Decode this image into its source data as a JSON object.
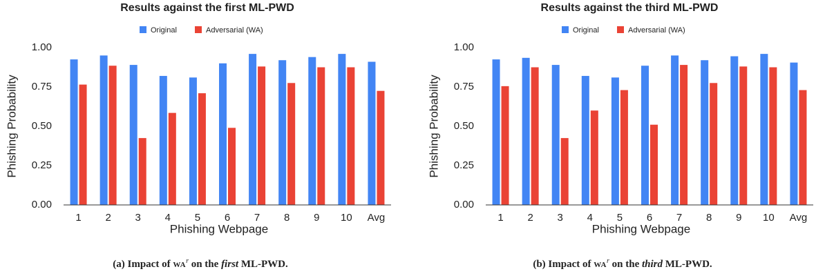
{
  "chart_data": [
    {
      "type": "bar",
      "title": "Results against the first ML-PWD",
      "x_label": "Phishing Webpage",
      "y_label": "Phishing Probability",
      "categories": [
        "1",
        "2",
        "3",
        "4",
        "5",
        "6",
        "7",
        "8",
        "9",
        "10",
        "Avg"
      ],
      "series": [
        {
          "name": "Original",
          "color": "#4285f4",
          "values": [
            0.925,
            0.95,
            0.89,
            0.82,
            0.81,
            0.9,
            0.96,
            0.92,
            0.94,
            0.96,
            0.91
          ]
        },
        {
          "name": "Adversarial (WA)",
          "color": "#ea4335",
          "values": [
            0.765,
            0.885,
            0.425,
            0.585,
            0.71,
            0.49,
            0.88,
            0.775,
            0.875,
            0.875,
            0.725
          ]
        }
      ],
      "ylim": [
        0,
        1
      ],
      "yticks": [
        {
          "value": 0,
          "label": "0.00"
        },
        {
          "value": 0.25,
          "label": "0.25"
        },
        {
          "value": 0.5,
          "label": "0.50"
        },
        {
          "value": 0.75,
          "label": "0.75"
        },
        {
          "value": 1,
          "label": "1.00"
        }
      ],
      "grid": false,
      "caption": [
        "(a) Impact of ",
        "WA",
        "r",
        " on the ",
        "first",
        " ML-PWD."
      ]
    },
    {
      "type": "bar",
      "title": "Results against the third ML-PWD",
      "x_label": "Phishing Webpage",
      "y_label": "Phishing Probability",
      "categories": [
        "1",
        "2",
        "3",
        "4",
        "5",
        "6",
        "7",
        "8",
        "9",
        "10",
        "Avg"
      ],
      "series": [
        {
          "name": "Original",
          "color": "#4285f4",
          "values": [
            0.925,
            0.935,
            0.89,
            0.82,
            0.81,
            0.885,
            0.95,
            0.92,
            0.945,
            0.96,
            0.905
          ]
        },
        {
          "name": "Adversarial (WA)",
          "color": "#ea4335",
          "values": [
            0.755,
            0.875,
            0.425,
            0.6,
            0.73,
            0.51,
            0.89,
            0.775,
            0.88,
            0.875,
            0.73
          ]
        }
      ],
      "ylim": [
        0,
        1
      ],
      "yticks": [
        {
          "value": 0,
          "label": "0.00"
        },
        {
          "value": 0.25,
          "label": "0.25"
        },
        {
          "value": 0.5,
          "label": "0.50"
        },
        {
          "value": 0.75,
          "label": "0.75"
        },
        {
          "value": 1,
          "label": "1.00"
        }
      ],
      "grid": false,
      "caption": [
        "(b) Impact of ",
        "WA",
        "r",
        " on the ",
        "third",
        " ML-PWD."
      ]
    }
  ]
}
